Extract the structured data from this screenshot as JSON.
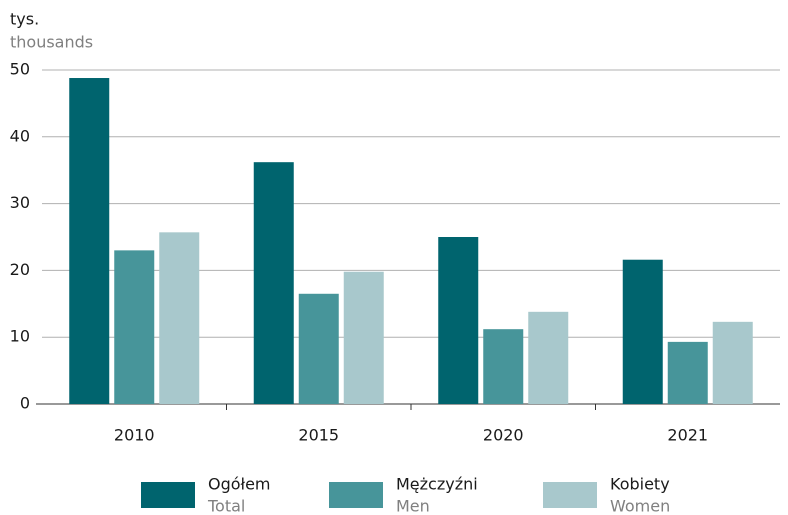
{
  "chart_data": {
    "type": "bar",
    "y_label": "tys.",
    "y_label_en": "thousands",
    "categories": [
      "2010",
      "2015",
      "2020",
      "2021"
    ],
    "series": [
      {
        "name": "Ogółem",
        "name_en": "Total",
        "color": "#00646e",
        "values": [
          48.8,
          36.2,
          25.0,
          21.6
        ]
      },
      {
        "name": "Mężczyźni",
        "name_en": "Men",
        "color": "#47959a",
        "values": [
          23.0,
          16.5,
          11.2,
          9.3
        ]
      },
      {
        "name": "Kobiety",
        "name_en": "Women",
        "color": "#a8c8cc",
        "values": [
          25.7,
          19.8,
          13.8,
          12.3
        ]
      }
    ],
    "ylim": [
      0,
      50
    ],
    "yticks": [
      0,
      10,
      20,
      30,
      40,
      50
    ],
    "grid": true,
    "legend": "bottom"
  }
}
